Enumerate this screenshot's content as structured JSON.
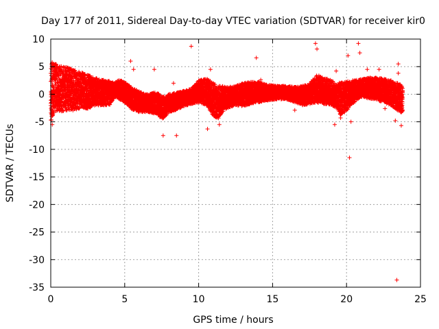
{
  "chart_data": {
    "type": "scatter",
    "title": "Day 177 of 2011, Sidereal Day-to-day VTEC variation (SDTVAR) for receiver kir0",
    "xlabel": "GPS time / hours",
    "ylabel": "SDTVAR / TECUs",
    "xlim": [
      0,
      25
    ],
    "ylim": [
      -35,
      10
    ],
    "xticks": [
      0,
      5,
      10,
      15,
      20,
      25
    ],
    "xtick_labels": [
      "0",
      "5",
      "10",
      "15",
      "20",
      "25"
    ],
    "yticks": [
      10,
      5,
      0,
      -5,
      -10,
      -15,
      -20,
      -25,
      -30,
      -35
    ],
    "ytick_labels": [
      "10",
      "5",
      "0",
      "-5",
      "-10",
      "-15",
      "-20",
      "-25",
      "-30",
      "-35"
    ],
    "grid": true,
    "marker": "+",
    "color": "#ff0000",
    "series": [
      {
        "name": "SDTVAR",
        "envelope": {
          "x": [
            0.0,
            0.3,
            0.6,
            1.0,
            1.5,
            2.0,
            2.5,
            3.0,
            3.5,
            4.0,
            4.3,
            4.6,
            5.0,
            5.5,
            6.0,
            6.5,
            7.0,
            7.3,
            7.6,
            8.0,
            8.5,
            9.0,
            9.5,
            10.0,
            10.5,
            11.0,
            11.3,
            11.6,
            12.0,
            12.5,
            13.0,
            13.5,
            14.0,
            14.5,
            15.0,
            15.5,
            16.0,
            16.5,
            17.0,
            17.5,
            18.0,
            18.5,
            19.0,
            19.3,
            19.6,
            20.0,
            20.5,
            21.0,
            21.5,
            22.0,
            22.5,
            23.0,
            23.5,
            23.8
          ],
          "upper": [
            6.0,
            5.5,
            5.2,
            5.0,
            4.5,
            4.0,
            3.5,
            3.0,
            2.6,
            2.4,
            2.0,
            2.6,
            2.2,
            1.2,
            0.5,
            0.0,
            0.3,
            0.1,
            -0.5,
            0.0,
            0.3,
            0.6,
            1.0,
            2.5,
            3.0,
            2.0,
            1.6,
            1.5,
            1.3,
            1.5,
            2.0,
            2.2,
            2.3,
            1.8,
            1.6,
            1.5,
            1.5,
            1.3,
            1.5,
            1.9,
            3.5,
            3.0,
            2.5,
            2.0,
            2.2,
            2.3,
            2.6,
            2.7,
            3.0,
            3.0,
            2.8,
            2.5,
            2.0,
            1.5
          ],
          "lower": [
            -5.0,
            -3.0,
            -3.2,
            -3.0,
            -3.0,
            -2.5,
            -2.6,
            -2.0,
            -2.0,
            -2.0,
            -0.5,
            -0.8,
            -1.5,
            -2.8,
            -3.3,
            -3.2,
            -3.5,
            -4.0,
            -4.5,
            -3.3,
            -2.8,
            -2.2,
            -1.8,
            -1.5,
            -2.0,
            -4.0,
            -4.5,
            -3.2,
            -2.5,
            -2.0,
            -2.2,
            -1.8,
            -1.5,
            -1.2,
            -1.0,
            -0.9,
            -1.0,
            -1.5,
            -2.0,
            -1.8,
            -1.5,
            -1.8,
            -2.0,
            -2.5,
            -3.8,
            -3.0,
            -1.5,
            -0.5,
            -0.8,
            -1.0,
            -1.5,
            -2.0,
            -3.0,
            -3.5
          ]
        },
        "spikes": [
          {
            "x": 0.1,
            "y": -5.5
          },
          {
            "x": 0.2,
            "y": 5.5
          },
          {
            "x": 5.4,
            "y": 6.0
          },
          {
            "x": 5.6,
            "y": 4.5
          },
          {
            "x": 6.1,
            "y": -2.8
          },
          {
            "x": 7.0,
            "y": 4.5
          },
          {
            "x": 7.6,
            "y": -7.5
          },
          {
            "x": 8.3,
            "y": 2.0
          },
          {
            "x": 8.5,
            "y": -7.5
          },
          {
            "x": 9.5,
            "y": 8.7
          },
          {
            "x": 10.6,
            "y": -6.3
          },
          {
            "x": 10.8,
            "y": 4.5
          },
          {
            "x": 11.4,
            "y": -5.5
          },
          {
            "x": 13.9,
            "y": 6.6
          },
          {
            "x": 14.2,
            "y": 2.6
          },
          {
            "x": 16.5,
            "y": -2.9
          },
          {
            "x": 17.9,
            "y": 9.2
          },
          {
            "x": 18.0,
            "y": 8.2
          },
          {
            "x": 19.3,
            "y": 4.2
          },
          {
            "x": 19.2,
            "y": -5.5
          },
          {
            "x": 19.6,
            "y": -4.3
          },
          {
            "x": 20.1,
            "y": 7.0
          },
          {
            "x": 20.2,
            "y": -11.5
          },
          {
            "x": 20.3,
            "y": -5.0
          },
          {
            "x": 20.8,
            "y": 9.2
          },
          {
            "x": 20.9,
            "y": 7.5
          },
          {
            "x": 21.4,
            "y": 4.5
          },
          {
            "x": 22.2,
            "y": 4.5
          },
          {
            "x": 22.6,
            "y": -2.6
          },
          {
            "x": 23.3,
            "y": -4.8
          },
          {
            "x": 23.5,
            "y": 5.5
          },
          {
            "x": 23.5,
            "y": 3.8
          },
          {
            "x": 23.4,
            "y": -33.7
          },
          {
            "x": 23.7,
            "y": -5.7
          }
        ]
      }
    ]
  }
}
